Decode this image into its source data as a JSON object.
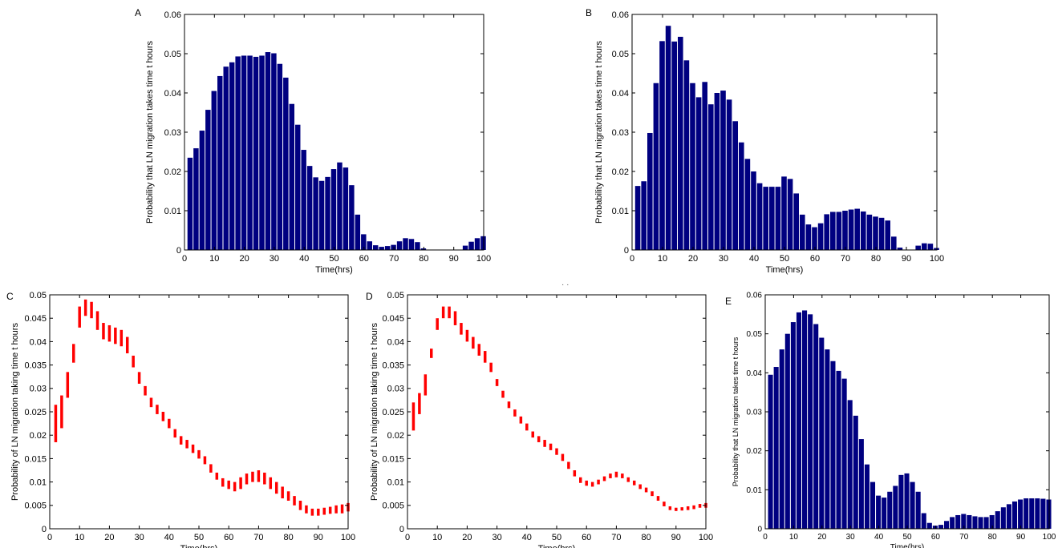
{
  "figure": {
    "stray_mark": "· ·"
  },
  "chart_data": [
    {
      "panel_label": "A",
      "type": "bar",
      "xlabel": "Time(hrs)",
      "ylabel": "Probability that LN migration takes time t hours",
      "xlim": [
        0,
        100
      ],
      "ylim": [
        0,
        0.06
      ],
      "xticks": [
        0,
        10,
        20,
        30,
        40,
        50,
        60,
        70,
        80,
        90,
        100
      ],
      "yticks": [
        0,
        0.01,
        0.02,
        0.03,
        0.04,
        0.05,
        0.06
      ],
      "bar_width": 2,
      "bar_color": "#000080",
      "x": [
        2,
        4,
        6,
        8,
        10,
        12,
        14,
        16,
        18,
        20,
        22,
        24,
        26,
        28,
        30,
        32,
        34,
        36,
        38,
        40,
        42,
        44,
        46,
        48,
        50,
        52,
        54,
        56,
        58,
        60,
        62,
        64,
        66,
        68,
        70,
        72,
        74,
        76,
        78,
        80,
        82,
        84,
        86,
        88,
        90,
        92,
        94,
        96,
        98,
        100
      ],
      "values": [
        0.0235,
        0.0259,
        0.0304,
        0.0357,
        0.0405,
        0.0443,
        0.0467,
        0.0478,
        0.0493,
        0.0495,
        0.0495,
        0.0492,
        0.0495,
        0.0504,
        0.0501,
        0.0474,
        0.0439,
        0.0372,
        0.0319,
        0.0255,
        0.0214,
        0.0185,
        0.0176,
        0.0186,
        0.0206,
        0.0223,
        0.021,
        0.0165,
        0.009,
        0.004,
        0.0022,
        0.0012,
        0.0008,
        0.001,
        0.0013,
        0.0022,
        0.003,
        0.0028,
        0.002,
        0.0004,
        0,
        0,
        0,
        0,
        0,
        0,
        0.0011,
        0.0021,
        0.003,
        0.0035
      ]
    },
    {
      "panel_label": "B",
      "type": "bar",
      "xlabel": "Time(hrs)",
      "ylabel": "Probability that LN migration takes time t hours",
      "xlim": [
        0,
        100
      ],
      "ylim": [
        0,
        0.06
      ],
      "xticks": [
        0,
        10,
        20,
        30,
        40,
        50,
        60,
        70,
        80,
        90,
        100
      ],
      "yticks": [
        0,
        0.01,
        0.02,
        0.03,
        0.04,
        0.05,
        0.06
      ],
      "bar_width": 2,
      "bar_color": "#000080",
      "x": [
        2,
        4,
        6,
        8,
        10,
        12,
        14,
        16,
        18,
        20,
        22,
        24,
        26,
        28,
        30,
        32,
        34,
        36,
        38,
        40,
        42,
        44,
        46,
        48,
        50,
        52,
        54,
        56,
        58,
        60,
        62,
        64,
        66,
        68,
        70,
        72,
        74,
        76,
        78,
        80,
        82,
        84,
        86,
        88,
        90,
        92,
        94,
        96,
        98,
        100
      ],
      "values": [
        0.0163,
        0.0175,
        0.0298,
        0.0425,
        0.0532,
        0.0571,
        0.0531,
        0.0543,
        0.0483,
        0.0425,
        0.0389,
        0.0428,
        0.0371,
        0.04,
        0.0406,
        0.0383,
        0.0328,
        0.0274,
        0.0232,
        0.02,
        0.017,
        0.0161,
        0.0161,
        0.0161,
        0.0187,
        0.0181,
        0.0144,
        0.009,
        0.0065,
        0.0058,
        0.0068,
        0.0091,
        0.0097,
        0.0097,
        0.01,
        0.0103,
        0.0105,
        0.0098,
        0.009,
        0.0085,
        0.0082,
        0.0075,
        0.0034,
        0.0006,
        0,
        0,
        0.0011,
        0.0017,
        0.0016,
        0.0005
      ]
    },
    {
      "panel_label": "C",
      "type": "errorbar",
      "xlabel": "Time(hrs)",
      "ylabel": "Probability of LN migration taking time t hours",
      "xlim": [
        0,
        100
      ],
      "ylim": [
        0,
        0.05
      ],
      "xticks": [
        0,
        10,
        20,
        30,
        40,
        50,
        60,
        70,
        80,
        90,
        100
      ],
      "yticks": [
        0,
        0.005,
        0.01,
        0.015,
        0.02,
        0.025,
        0.03,
        0.035,
        0.04,
        0.045,
        0.05
      ],
      "bar_color": "#ff0000",
      "x": [
        2,
        4,
        6,
        8,
        10,
        12,
        14,
        16,
        18,
        20,
        22,
        24,
        26,
        28,
        30,
        32,
        34,
        36,
        38,
        40,
        42,
        44,
        46,
        48,
        50,
        52,
        54,
        56,
        58,
        60,
        62,
        64,
        66,
        68,
        70,
        72,
        74,
        76,
        78,
        80,
        82,
        84,
        86,
        88,
        90,
        92,
        94,
        96,
        98,
        100
      ],
      "lower": [
        0.0185,
        0.0215,
        0.028,
        0.0355,
        0.043,
        0.0455,
        0.045,
        0.0425,
        0.0405,
        0.04,
        0.0395,
        0.039,
        0.0375,
        0.0345,
        0.031,
        0.0285,
        0.026,
        0.0245,
        0.023,
        0.0215,
        0.0195,
        0.018,
        0.0172,
        0.0162,
        0.015,
        0.0138,
        0.012,
        0.0105,
        0.009,
        0.0085,
        0.008,
        0.0085,
        0.0095,
        0.01,
        0.01,
        0.0095,
        0.0085,
        0.0075,
        0.0065,
        0.006,
        0.005,
        0.004,
        0.0033,
        0.0028,
        0.0028,
        0.003,
        0.0032,
        0.0033,
        0.0033,
        0.0037
      ],
      "upper": [
        0.0265,
        0.0285,
        0.0335,
        0.0395,
        0.0475,
        0.049,
        0.0485,
        0.0465,
        0.044,
        0.0435,
        0.043,
        0.0425,
        0.041,
        0.037,
        0.0335,
        0.0305,
        0.028,
        0.0265,
        0.025,
        0.0235,
        0.0213,
        0.0198,
        0.019,
        0.018,
        0.0168,
        0.0155,
        0.0138,
        0.012,
        0.0108,
        0.0103,
        0.01,
        0.011,
        0.0118,
        0.0122,
        0.0125,
        0.012,
        0.011,
        0.01,
        0.009,
        0.008,
        0.007,
        0.006,
        0.005,
        0.0043,
        0.0043,
        0.0045,
        0.0047,
        0.005,
        0.0052,
        0.0055
      ]
    },
    {
      "panel_label": "D",
      "type": "errorbar",
      "xlabel": "Time(hrs)",
      "ylabel": "Probability of LN migration taking time t hours",
      "xlim": [
        0,
        100
      ],
      "ylim": [
        0,
        0.05
      ],
      "xticks": [
        0,
        10,
        20,
        30,
        40,
        50,
        60,
        70,
        80,
        90,
        100
      ],
      "yticks": [
        0,
        0.005,
        0.01,
        0.015,
        0.02,
        0.025,
        0.03,
        0.035,
        0.04,
        0.045,
        0.05
      ],
      "bar_color": "#ff0000",
      "x": [
        2,
        4,
        6,
        8,
        10,
        12,
        14,
        16,
        18,
        20,
        22,
        24,
        26,
        28,
        30,
        32,
        34,
        36,
        38,
        40,
        42,
        44,
        46,
        48,
        50,
        52,
        54,
        56,
        58,
        60,
        62,
        64,
        66,
        68,
        70,
        72,
        74,
        76,
        78,
        80,
        82,
        84,
        86,
        88,
        90,
        92,
        94,
        96,
        98,
        100
      ],
      "lower": [
        0.021,
        0.0245,
        0.0285,
        0.0365,
        0.0425,
        0.045,
        0.045,
        0.0435,
        0.0415,
        0.04,
        0.0385,
        0.037,
        0.0355,
        0.0335,
        0.0305,
        0.028,
        0.0258,
        0.024,
        0.0225,
        0.021,
        0.0195,
        0.0185,
        0.0175,
        0.0168,
        0.0158,
        0.0145,
        0.0128,
        0.0112,
        0.0098,
        0.0092,
        0.009,
        0.0095,
        0.0102,
        0.0108,
        0.011,
        0.0108,
        0.01,
        0.0093,
        0.0085,
        0.0078,
        0.007,
        0.006,
        0.0048,
        0.004,
        0.0038,
        0.0039,
        0.004,
        0.0042,
        0.0045,
        0.0045
      ],
      "upper": [
        0.027,
        0.029,
        0.033,
        0.0385,
        0.045,
        0.0475,
        0.0475,
        0.0465,
        0.044,
        0.0425,
        0.041,
        0.0395,
        0.038,
        0.0355,
        0.032,
        0.0295,
        0.0272,
        0.0255,
        0.024,
        0.0225,
        0.0208,
        0.0198,
        0.019,
        0.0182,
        0.0172,
        0.016,
        0.0143,
        0.0125,
        0.011,
        0.0103,
        0.01,
        0.0105,
        0.0112,
        0.0118,
        0.0122,
        0.0118,
        0.011,
        0.0103,
        0.0095,
        0.0088,
        0.008,
        0.007,
        0.0058,
        0.0048,
        0.0045,
        0.0046,
        0.0048,
        0.005,
        0.0053,
        0.0055
      ]
    },
    {
      "panel_label": "E",
      "type": "bar",
      "xlabel": "Time(hrs)",
      "ylabel": "Probability that LN migration takes time t hours",
      "xlim": [
        0,
        100
      ],
      "ylim": [
        0,
        0.06
      ],
      "xticks": [
        0,
        10,
        20,
        30,
        40,
        50,
        60,
        70,
        80,
        90,
        100
      ],
      "yticks": [
        0,
        0.01,
        0.02,
        0.03,
        0.04,
        0.05,
        0.06
      ],
      "bar_width": 2,
      "bar_color": "#000080",
      "x": [
        2,
        4,
        6,
        8,
        10,
        12,
        14,
        16,
        18,
        20,
        22,
        24,
        26,
        28,
        30,
        32,
        34,
        36,
        38,
        40,
        42,
        44,
        46,
        48,
        50,
        52,
        54,
        56,
        58,
        60,
        62,
        64,
        66,
        68,
        70,
        72,
        74,
        76,
        78,
        80,
        82,
        84,
        86,
        88,
        90,
        92,
        94,
        96,
        98,
        100
      ],
      "values": [
        0.0395,
        0.0415,
        0.046,
        0.05,
        0.053,
        0.0555,
        0.056,
        0.055,
        0.0525,
        0.049,
        0.046,
        0.043,
        0.0405,
        0.0385,
        0.033,
        0.029,
        0.023,
        0.0165,
        0.012,
        0.0085,
        0.008,
        0.0095,
        0.011,
        0.0138,
        0.0142,
        0.012,
        0.0095,
        0.004,
        0.0015,
        0.0008,
        0.001,
        0.002,
        0.003,
        0.0035,
        0.0038,
        0.0035,
        0.0032,
        0.003,
        0.003,
        0.0035,
        0.0045,
        0.0055,
        0.0063,
        0.007,
        0.0075,
        0.0078,
        0.0078,
        0.0078,
        0.0077,
        0.0075
      ]
    }
  ]
}
